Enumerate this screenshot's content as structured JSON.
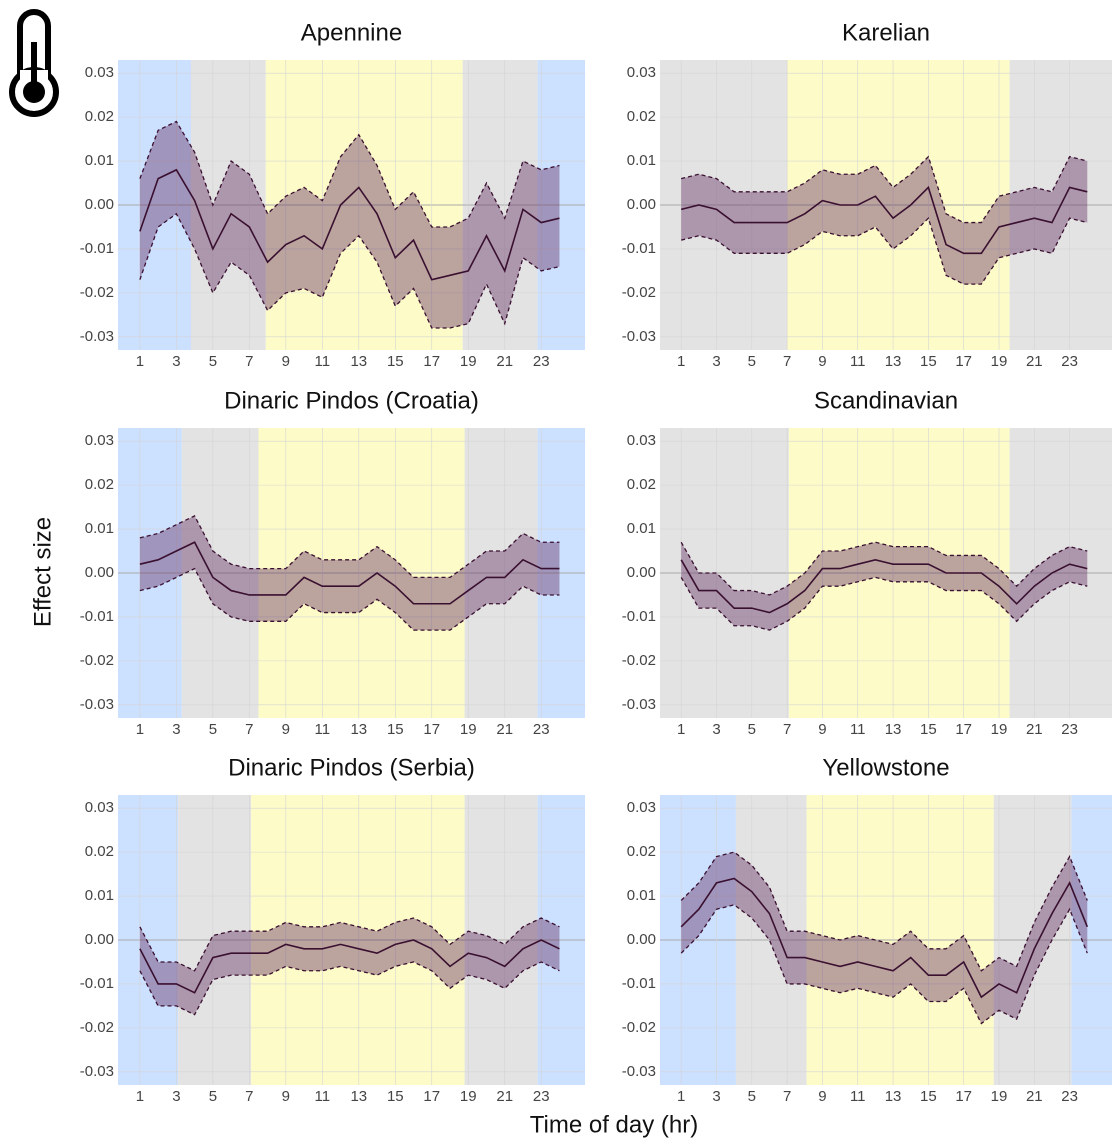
{
  "ylabel": "Effect size",
  "xlabel": "Time of day (hr)",
  "chart_data": [
    {
      "type": "line",
      "title": "Apennine",
      "x": [
        1,
        2,
        3,
        4,
        5,
        6,
        7,
        8,
        9,
        10,
        11,
        12,
        13,
        14,
        15,
        16,
        17,
        18,
        19,
        20,
        21,
        22,
        23,
        24
      ],
      "values": [
        -0.006,
        0.006,
        0.008,
        0.001,
        -0.01,
        -0.002,
        -0.005,
        -0.013,
        -0.009,
        -0.007,
        -0.01,
        0.0,
        0.004,
        -0.002,
        -0.012,
        -0.008,
        -0.017,
        -0.016,
        -0.015,
        -0.007,
        -0.015,
        -0.001,
        -0.004,
        -0.003
      ],
      "upper": [
        0.006,
        0.017,
        0.019,
        0.012,
        0.0,
        0.01,
        0.007,
        -0.002,
        0.002,
        0.004,
        0.001,
        0.011,
        0.016,
        0.009,
        -0.001,
        0.003,
        -0.005,
        -0.005,
        -0.003,
        0.005,
        -0.003,
        0.01,
        0.008,
        0.009
      ],
      "lower": [
        -0.017,
        -0.005,
        -0.002,
        -0.01,
        -0.02,
        -0.013,
        -0.016,
        -0.024,
        -0.02,
        -0.019,
        -0.021,
        -0.011,
        -0.007,
        -0.013,
        -0.023,
        -0.019,
        -0.028,
        -0.028,
        -0.027,
        -0.018,
        -0.027,
        -0.012,
        -0.015,
        -0.014
      ],
      "line_color": "#3a1030",
      "band_color": "#6b3a6b",
      "periods": [
        {
          "start": -0.2,
          "end": 3.8,
          "color": "#cce0ff"
        },
        {
          "start": 3.8,
          "end": 7.9,
          "color": "#e3e3e3"
        },
        {
          "start": 7.9,
          "end": 18.7,
          "color": "#fdfcc8"
        },
        {
          "start": 18.7,
          "end": 22.8,
          "color": "#e3e3e3"
        },
        {
          "start": 22.8,
          "end": 25.4,
          "color": "#cce0ff"
        }
      ],
      "xlim": [
        -0.2,
        25.4
      ],
      "ylim": [
        -0.033,
        0.033
      ],
      "xticks": [
        1,
        3,
        5,
        7,
        9,
        11,
        13,
        15,
        17,
        19,
        21,
        23
      ],
      "yticks": [
        -0.03,
        -0.02,
        -0.01,
        {
          "value": 0,
          "label": "0.00"
        },
        0.01,
        0.02,
        0.03
      ],
      "grid": true
    },
    {
      "type": "line",
      "title": "Karelian",
      "x": [
        1,
        2,
        3,
        4,
        5,
        6,
        7,
        8,
        9,
        10,
        11,
        12,
        13,
        14,
        15,
        16,
        17,
        18,
        19,
        20,
        21,
        22,
        23,
        24
      ],
      "values": [
        -0.001,
        0.0,
        -0.001,
        -0.004,
        -0.004,
        -0.004,
        -0.004,
        -0.002,
        0.001,
        0.0,
        0.0,
        0.002,
        -0.003,
        0.0,
        0.004,
        -0.009,
        -0.011,
        -0.011,
        -0.005,
        -0.004,
        -0.003,
        -0.004,
        0.004,
        0.003
      ],
      "upper": [
        0.006,
        0.007,
        0.006,
        0.003,
        0.003,
        0.003,
        0.003,
        0.005,
        0.008,
        0.007,
        0.007,
        0.009,
        0.004,
        0.007,
        0.011,
        -0.002,
        -0.004,
        -0.004,
        0.002,
        0.003,
        0.004,
        0.003,
        0.011,
        0.01
      ],
      "lower": [
        -0.008,
        -0.007,
        -0.008,
        -0.011,
        -0.011,
        -0.011,
        -0.011,
        -0.009,
        -0.006,
        -0.007,
        -0.007,
        -0.005,
        -0.01,
        -0.007,
        -0.003,
        -0.016,
        -0.018,
        -0.018,
        -0.012,
        -0.011,
        -0.01,
        -0.011,
        -0.003,
        -0.004
      ],
      "line_color": "#3a1030",
      "band_color": "#6b3a6b",
      "periods": [
        {
          "start": -0.2,
          "end": 7.0,
          "color": "#e3e3e3"
        },
        {
          "start": 7.0,
          "end": 19.6,
          "color": "#fdfcc8"
        },
        {
          "start": 19.6,
          "end": 25.4,
          "color": "#e3e3e3"
        }
      ],
      "xlim": [
        -0.2,
        25.4
      ],
      "ylim": [
        -0.033,
        0.033
      ],
      "xticks": [
        1,
        3,
        5,
        7,
        9,
        11,
        13,
        15,
        17,
        19,
        21,
        23
      ],
      "yticks": [
        -0.03,
        -0.02,
        -0.01,
        {
          "value": 0,
          "label": "0.00"
        },
        0.01,
        0.02,
        0.03
      ],
      "grid": true
    },
    {
      "type": "line",
      "title": "Dinaric Pindos (Croatia)",
      "x": [
        1,
        2,
        3,
        4,
        5,
        6,
        7,
        8,
        9,
        10,
        11,
        12,
        13,
        14,
        15,
        16,
        17,
        18,
        19,
        20,
        21,
        22,
        23,
        24
      ],
      "values": [
        0.002,
        0.003,
        0.005,
        0.007,
        -0.001,
        -0.004,
        -0.005,
        -0.005,
        -0.005,
        -0.001,
        -0.003,
        -0.003,
        -0.003,
        0.0,
        -0.003,
        -0.007,
        -0.007,
        -0.007,
        -0.004,
        -0.001,
        -0.001,
        0.003,
        0.001,
        0.001
      ],
      "upper": [
        0.008,
        0.009,
        0.011,
        0.013,
        0.005,
        0.002,
        0.001,
        0.001,
        0.001,
        0.005,
        0.003,
        0.003,
        0.003,
        0.006,
        0.003,
        -0.001,
        -0.001,
        -0.001,
        0.002,
        0.005,
        0.005,
        0.009,
        0.007,
        0.007
      ],
      "lower": [
        -0.004,
        -0.003,
        -0.001,
        0.001,
        -0.007,
        -0.01,
        -0.011,
        -0.011,
        -0.011,
        -0.007,
        -0.009,
        -0.009,
        -0.009,
        -0.006,
        -0.009,
        -0.013,
        -0.013,
        -0.013,
        -0.01,
        -0.007,
        -0.007,
        -0.003,
        -0.005,
        -0.005
      ],
      "line_color": "#3a1030",
      "band_color": "#6b3a6b",
      "periods": [
        {
          "start": -0.2,
          "end": 3.3,
          "color": "#cce0ff"
        },
        {
          "start": 3.3,
          "end": 7.5,
          "color": "#e3e3e3"
        },
        {
          "start": 7.5,
          "end": 18.8,
          "color": "#fdfcc8"
        },
        {
          "start": 18.8,
          "end": 22.8,
          "color": "#e3e3e3"
        },
        {
          "start": 22.8,
          "end": 25.4,
          "color": "#cce0ff"
        }
      ],
      "xlim": [
        -0.2,
        25.4
      ],
      "ylim": [
        -0.033,
        0.033
      ],
      "xticks": [
        1,
        3,
        5,
        7,
        9,
        11,
        13,
        15,
        17,
        19,
        21,
        23
      ],
      "yticks": [
        -0.03,
        -0.02,
        -0.01,
        {
          "value": 0,
          "label": "0.00"
        },
        0.01,
        0.02,
        0.03
      ],
      "grid": true
    },
    {
      "type": "line",
      "title": "Scandinavian",
      "x": [
        1,
        2,
        3,
        4,
        5,
        6,
        7,
        8,
        9,
        10,
        11,
        12,
        13,
        14,
        15,
        16,
        17,
        18,
        19,
        20,
        21,
        22,
        23,
        24
      ],
      "values": [
        0.003,
        -0.004,
        -0.004,
        -0.008,
        -0.008,
        -0.009,
        -0.007,
        -0.004,
        0.001,
        0.001,
        0.002,
        0.003,
        0.002,
        0.002,
        0.002,
        0.0,
        0.0,
        0.0,
        -0.003,
        -0.007,
        -0.003,
        0.0,
        0.002,
        0.001
      ],
      "upper": [
        0.007,
        0.0,
        0.0,
        -0.004,
        -0.004,
        -0.005,
        -0.003,
        0.0,
        0.005,
        0.005,
        0.006,
        0.007,
        0.006,
        0.006,
        0.006,
        0.004,
        0.004,
        0.004,
        0.001,
        -0.003,
        0.001,
        0.004,
        0.006,
        0.005
      ],
      "lower": [
        -0.001,
        -0.008,
        -0.008,
        -0.012,
        -0.012,
        -0.013,
        -0.011,
        -0.008,
        -0.003,
        -0.003,
        -0.002,
        -0.001,
        -0.002,
        -0.002,
        -0.002,
        -0.004,
        -0.004,
        -0.004,
        -0.007,
        -0.011,
        -0.007,
        -0.004,
        -0.002,
        -0.003
      ],
      "line_color": "#3a1030",
      "band_color": "#6b3a6b",
      "periods": [
        {
          "start": -0.2,
          "end": 7.1,
          "color": "#e3e3e3"
        },
        {
          "start": 7.1,
          "end": 19.6,
          "color": "#fdfcc8"
        },
        {
          "start": 19.6,
          "end": 25.4,
          "color": "#e3e3e3"
        }
      ],
      "xlim": [
        -0.2,
        25.4
      ],
      "ylim": [
        -0.033,
        0.033
      ],
      "xticks": [
        1,
        3,
        5,
        7,
        9,
        11,
        13,
        15,
        17,
        19,
        21,
        23
      ],
      "yticks": [
        -0.03,
        -0.02,
        -0.01,
        {
          "value": 0,
          "label": "0.00"
        },
        0.01,
        0.02,
        0.03
      ],
      "grid": true
    },
    {
      "type": "line",
      "title": "Dinaric Pindos (Serbia)",
      "x": [
        1,
        2,
        3,
        4,
        5,
        6,
        7,
        8,
        9,
        10,
        11,
        12,
        13,
        14,
        15,
        16,
        17,
        18,
        19,
        20,
        21,
        22,
        23,
        24
      ],
      "values": [
        -0.002,
        -0.01,
        -0.01,
        -0.012,
        -0.004,
        -0.003,
        -0.003,
        -0.003,
        -0.001,
        -0.002,
        -0.002,
        -0.001,
        -0.002,
        -0.003,
        -0.001,
        0.0,
        -0.002,
        -0.006,
        -0.003,
        -0.004,
        -0.006,
        -0.002,
        0.0,
        -0.002
      ],
      "upper": [
        0.003,
        -0.005,
        -0.005,
        -0.007,
        0.001,
        0.002,
        0.002,
        0.002,
        0.004,
        0.003,
        0.003,
        0.004,
        0.003,
        0.002,
        0.004,
        0.005,
        0.003,
        -0.001,
        0.002,
        0.001,
        -0.001,
        0.003,
        0.005,
        0.003
      ],
      "lower": [
        -0.007,
        -0.015,
        -0.015,
        -0.017,
        -0.009,
        -0.008,
        -0.008,
        -0.008,
        -0.006,
        -0.007,
        -0.007,
        -0.006,
        -0.007,
        -0.008,
        -0.006,
        -0.005,
        -0.007,
        -0.011,
        -0.008,
        -0.009,
        -0.011,
        -0.007,
        -0.005,
        -0.007
      ],
      "line_color": "#3a1030",
      "band_color": "#6b3a6b",
      "periods": [
        {
          "start": -0.2,
          "end": 3.1,
          "color": "#cce0ff"
        },
        {
          "start": 3.1,
          "end": 7.1,
          "color": "#e3e3e3"
        },
        {
          "start": 7.1,
          "end": 18.8,
          "color": "#fdfcc8"
        },
        {
          "start": 18.8,
          "end": 22.8,
          "color": "#e3e3e3"
        },
        {
          "start": 22.8,
          "end": 25.4,
          "color": "#cce0ff"
        }
      ],
      "xlim": [
        -0.2,
        25.4
      ],
      "ylim": [
        -0.033,
        0.033
      ],
      "xticks": [
        1,
        3,
        5,
        7,
        9,
        11,
        13,
        15,
        17,
        19,
        21,
        23
      ],
      "yticks": [
        -0.03,
        -0.02,
        -0.01,
        {
          "value": 0,
          "label": "0.00"
        },
        0.01,
        0.02,
        0.03
      ],
      "grid": true
    },
    {
      "type": "line",
      "title": "Yellowstone",
      "x": [
        1,
        2,
        3,
        4,
        5,
        6,
        7,
        8,
        9,
        10,
        11,
        12,
        13,
        14,
        15,
        16,
        17,
        18,
        19,
        20,
        21,
        22,
        23,
        24
      ],
      "values": [
        0.003,
        0.007,
        0.013,
        0.014,
        0.011,
        0.006,
        -0.004,
        -0.004,
        -0.005,
        -0.006,
        -0.005,
        -0.006,
        -0.007,
        -0.004,
        -0.008,
        -0.008,
        -0.005,
        -0.013,
        -0.01,
        -0.012,
        -0.002,
        0.006,
        0.013,
        0.003
      ],
      "upper": [
        0.009,
        0.013,
        0.019,
        0.02,
        0.017,
        0.012,
        0.002,
        0.002,
        0.001,
        0.0,
        0.001,
        0.0,
        -0.001,
        0.002,
        -0.002,
        -0.002,
        0.001,
        -0.007,
        -0.004,
        -0.006,
        0.004,
        0.012,
        0.019,
        0.009
      ],
      "lower": [
        -0.003,
        0.001,
        0.007,
        0.008,
        0.005,
        0.0,
        -0.01,
        -0.01,
        -0.011,
        -0.012,
        -0.011,
        -0.012,
        -0.013,
        -0.01,
        -0.014,
        -0.014,
        -0.011,
        -0.019,
        -0.016,
        -0.018,
        -0.008,
        0.0,
        0.007,
        -0.003
      ],
      "line_color": "#3a1030",
      "band_color": "#6b3a6b",
      "periods": [
        {
          "start": -0.2,
          "end": 4.1,
          "color": "#cce0ff"
        },
        {
          "start": 4.1,
          "end": 8.1,
          "color": "#e3e3e3"
        },
        {
          "start": 8.1,
          "end": 18.7,
          "color": "#fdfcc8"
        },
        {
          "start": 18.7,
          "end": 23.1,
          "color": "#e3e3e3"
        },
        {
          "start": 23.1,
          "end": 25.4,
          "color": "#cce0ff"
        }
      ],
      "xlim": [
        -0.2,
        25.4
      ],
      "ylim": [
        -0.033,
        0.033
      ],
      "xticks": [
        1,
        3,
        5,
        7,
        9,
        11,
        13,
        15,
        17,
        19,
        21,
        23
      ],
      "yticks": [
        -0.03,
        -0.02,
        -0.01,
        {
          "value": 0,
          "label": "0.00"
        },
        0.01,
        0.02,
        0.03
      ],
      "grid": true
    }
  ]
}
